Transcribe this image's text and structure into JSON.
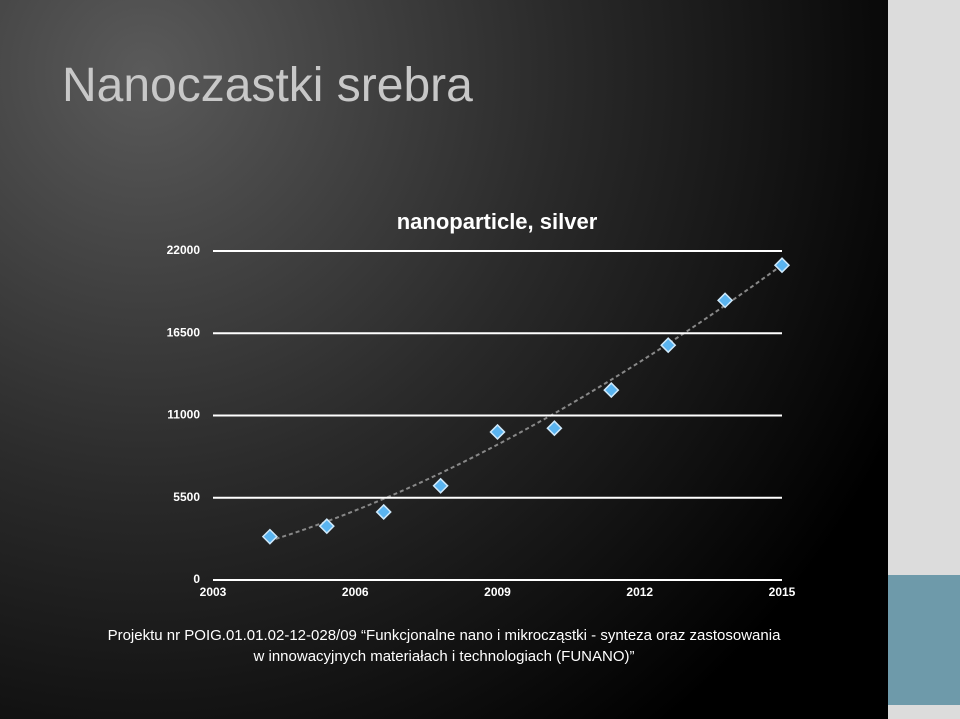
{
  "slide": {
    "title": "Nanoczastki srebra",
    "footer": [
      "Projektu nr POIG.01.01.02-12-028/09  “Funkcjonalne nano i mikrocząstki - synteza oraz zastosowania",
      "w innowacyjnych materiałach i technologiach (FUNANO)”"
    ]
  },
  "chart_data": {
    "type": "scatter",
    "title": "nanoparticle, silver",
    "x": [
      2004.2,
      2005.4,
      2006.6,
      2007.8,
      2009,
      2010.2,
      2011.4,
      2012.6,
      2013.8,
      2015
    ],
    "values": [
      2900,
      3600,
      4550,
      6300,
      9900,
      10150,
      12700,
      15700,
      18700,
      21050
    ],
    "color": "#5ab4f0",
    "xlim": [
      2003,
      2015
    ],
    "xticks": [
      2003,
      2006,
      2009,
      2012,
      2015
    ],
    "ylim": [
      0,
      22000
    ],
    "yticks": [
      0,
      5500,
      11000,
      16500,
      22000
    ],
    "grid": true
  }
}
